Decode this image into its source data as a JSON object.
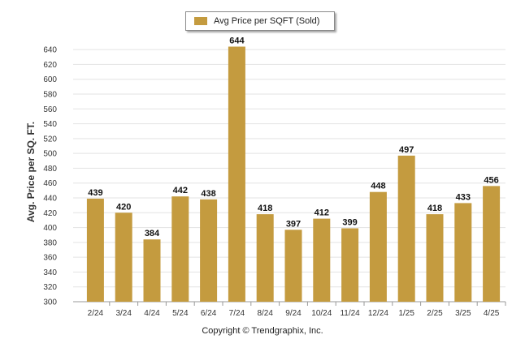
{
  "chart_data": {
    "type": "bar",
    "title": "",
    "xlabel": "",
    "ylabel": "Avg. Price per SQ. FT.",
    "categories": [
      "2/24",
      "3/24",
      "4/24",
      "5/24",
      "6/24",
      "7/24",
      "8/24",
      "9/24",
      "10/24",
      "11/24",
      "12/24",
      "1/25",
      "2/25",
      "3/25",
      "4/25"
    ],
    "series": [
      {
        "name": "Avg Price per SQFT (Sold)",
        "values": [
          439,
          420,
          384,
          442,
          438,
          644,
          418,
          397,
          412,
          399,
          448,
          497,
          418,
          433,
          456
        ]
      }
    ],
    "ylim": [
      300,
      650
    ],
    "yticks": [
      300,
      320,
      340,
      360,
      380,
      400,
      420,
      440,
      460,
      480,
      500,
      520,
      540,
      560,
      580,
      600,
      620,
      640
    ],
    "grid": true,
    "legend": "top-center",
    "bar_color": "#c49b3f",
    "data_labels": true
  },
  "legend": {
    "label": "Avg Price per SQFT (Sold)"
  },
  "footer": {
    "copyright": "Copyright © Trendgraphix, Inc."
  }
}
